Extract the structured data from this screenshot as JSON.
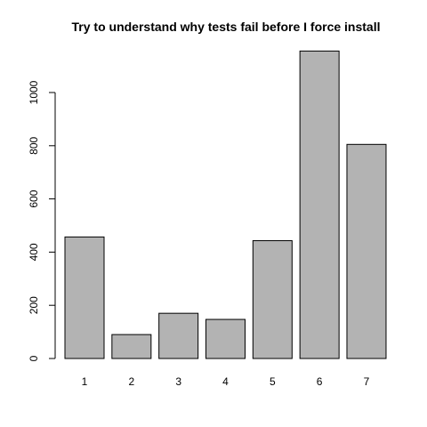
{
  "chart_data": {
    "type": "bar",
    "title": "Try to understand why tests fail before I force install",
    "xlabel": "",
    "ylabel": "",
    "categories": [
      "1",
      "2",
      "3",
      "4",
      "5",
      "6",
      "7"
    ],
    "values": [
      457,
      90,
      170,
      147,
      443,
      1156,
      805
    ],
    "ylim": [
      0,
      1200
    ],
    "yticks": [
      0,
      200,
      400,
      600,
      800,
      1000
    ],
    "grid": false,
    "legend": "none",
    "bar_color": "#b3b3b3",
    "bar_border_color": "#000000"
  }
}
